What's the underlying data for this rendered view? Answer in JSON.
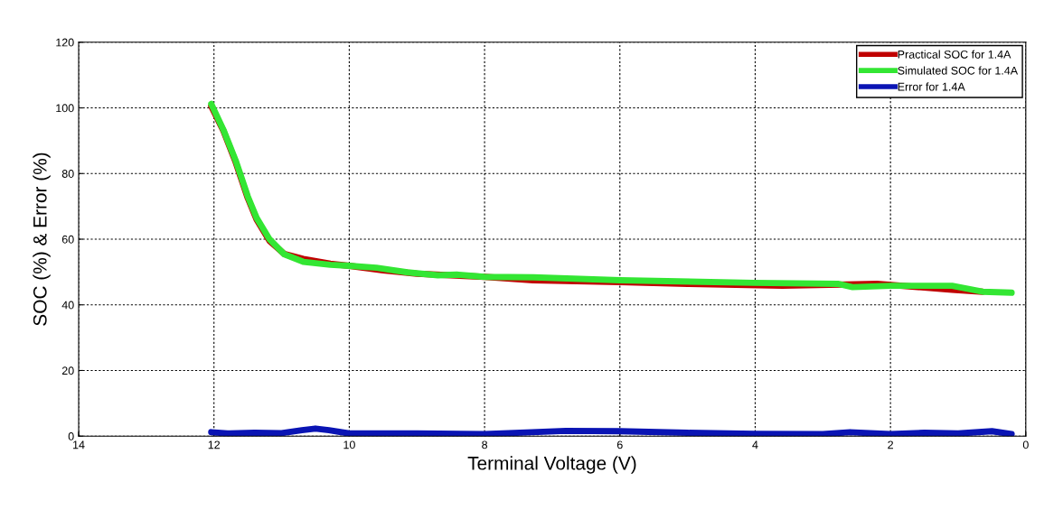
{
  "chart_data": {
    "type": "line",
    "xlabel": "Terminal Voltage (V)",
    "ylabel": "SOC (%) & Error (%)",
    "xlim": [
      14,
      0
    ],
    "ylim": [
      0,
      120
    ],
    "xticks": [
      14,
      12,
      10,
      8,
      6,
      4,
      2,
      0
    ],
    "yticks": [
      0,
      20,
      40,
      60,
      80,
      100,
      120
    ],
    "grid": true,
    "legend": "top right",
    "line_style": "solid",
    "marker": "none",
    "series": [
      {
        "name": "Practical SOC for 1.4A",
        "color": "#c00000",
        "x": [
          12.04,
          11.86,
          11.68,
          11.5,
          11.37,
          11.18,
          10.96,
          10.68,
          10.28,
          10.0,
          9.5,
          9.0,
          8.5,
          8.0,
          7.28,
          6.0,
          5.0,
          3.6,
          2.2,
          1.09,
          0.64
        ],
        "values": [
          100.5,
          93,
          83.5,
          72.5,
          66,
          59.5,
          55.5,
          54,
          52.5,
          51.9,
          50.5,
          49.5,
          49,
          48.5,
          47.5,
          46.9,
          46.4,
          45.8,
          46.4,
          44.6,
          44
        ]
      },
      {
        "name": "Simulated SOC for 1.4A",
        "color": "#33e633",
        "x": [
          12.04,
          11.86,
          11.68,
          11.5,
          11.37,
          11.18,
          10.96,
          10.68,
          10.28,
          10.0,
          9.6,
          9.14,
          8.69,
          8.41,
          8.0,
          7.28,
          6.0,
          4.02,
          2.78,
          2.56,
          2.0,
          1.09,
          0.64,
          0.21
        ],
        "values": [
          101.2,
          93.3,
          84,
          73,
          66.5,
          60,
          55.4,
          53.1,
          52.2,
          51.9,
          51.3,
          49.9,
          49,
          49.2,
          48.5,
          48.4,
          47.5,
          46.7,
          46.4,
          45.4,
          45.8,
          45.8,
          44,
          43.7
        ]
      },
      {
        "name": "Error for 1.4A",
        "color": "#0a14b4",
        "x": [
          12.04,
          11.8,
          11.4,
          11.0,
          10.7,
          10.5,
          10.3,
          10.0,
          9.0,
          8.0,
          7.3,
          6.8,
          6.0,
          5.0,
          4.0,
          3.0,
          2.6,
          2.0,
          1.5,
          1.0,
          0.5,
          0.21
        ],
        "values": [
          1.2,
          0.8,
          1.0,
          0.9,
          1.8,
          2.3,
          1.8,
          0.8,
          0.8,
          0.6,
          1.2,
          1.6,
          1.5,
          1.0,
          0.7,
          0.6,
          1.2,
          0.6,
          1.0,
          0.8,
          1.5,
          0.6
        ]
      }
    ]
  }
}
